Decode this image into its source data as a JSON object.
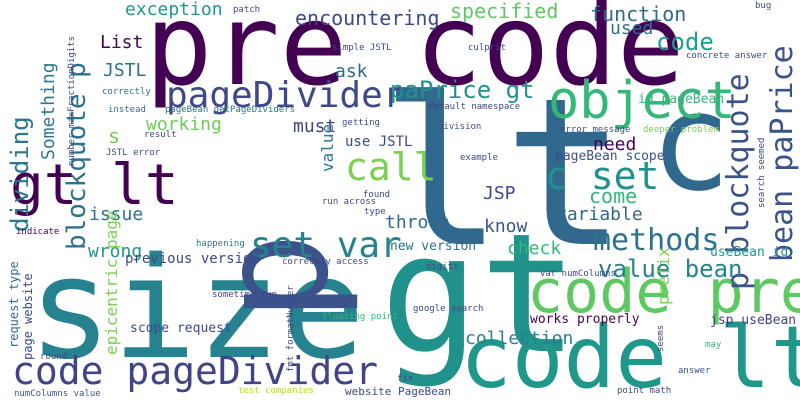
{
  "words": [
    {
      "text": "pre code",
      "color": "#440154"
    },
    {
      "text": "lt",
      "color": "#31688e"
    },
    {
      "text": "c",
      "color": "#31688e"
    },
    {
      "text": "gt",
      "color": "#21918c"
    },
    {
      "text": "size",
      "color": "#26828e"
    },
    {
      "text": "p",
      "color": "#3b528b"
    },
    {
      "text": "code pre",
      "color": "#5ec962"
    },
    {
      "text": "code lt",
      "color": "#1f988b"
    },
    {
      "text": "object",
      "color": "#35b779"
    },
    {
      "text": "gt lt",
      "color": "#440154"
    },
    {
      "text": "pageDivider",
      "color": "#3e4989"
    },
    {
      "text": "code pageDivider",
      "color": "#414487"
    },
    {
      "text": "p blockquote",
      "color": "#3b528b"
    },
    {
      "text": "blockquote p",
      "color": "#2c728e"
    },
    {
      "text": "c set",
      "color": "#21918c"
    },
    {
      "text": "call",
      "color": "#7ad151"
    },
    {
      "text": "set var",
      "color": "#26828e"
    },
    {
      "text": "methods",
      "color": "#2c728e"
    },
    {
      "text": "value bean",
      "color": "#26828e"
    },
    {
      "text": "bean paPrice",
      "color": "#3b528b"
    },
    {
      "text": "paPrice gt",
      "color": "#21918c"
    },
    {
      "text": "dividing",
      "color": "#2a788e"
    },
    {
      "text": "encountering",
      "color": "#3e4989"
    },
    {
      "text": "specified",
      "color": "#5ec962"
    },
    {
      "text": "exception",
      "color": "#1f988b"
    },
    {
      "text": "function",
      "color": "#31688e"
    },
    {
      "text": "code",
      "color": "#1f9e89"
    },
    {
      "text": "used",
      "color": "#2c728e"
    },
    {
      "text": "List",
      "color": "#440154"
    },
    {
      "text": "JSTL",
      "color": "#2c728e"
    },
    {
      "text": "ask",
      "color": "#31688e"
    },
    {
      "text": "working",
      "color": "#6ece58"
    },
    {
      "text": "must",
      "color": "#414487"
    },
    {
      "text": "value",
      "color": "#2a788e"
    },
    {
      "text": "use JSTL",
      "color": "#3e4989"
    },
    {
      "text": "need",
      "color": "#440154"
    },
    {
      "text": "pageBean scope",
      "color": "#3b528b"
    },
    {
      "text": "come",
      "color": "#35b779"
    },
    {
      "text": "JSP",
      "color": "#3e4989"
    },
    {
      "text": "issue",
      "color": "#2c728e"
    },
    {
      "text": "variable",
      "color": "#31688e"
    },
    {
      "text": "thrown",
      "color": "#31688e"
    },
    {
      "text": "know",
      "color": "#3b528b"
    },
    {
      "text": "wrong",
      "color": "#1f988b"
    },
    {
      "text": "check",
      "color": "#35b779"
    },
    {
      "text": "previous version",
      "color": "#3e4989"
    },
    {
      "text": "new version",
      "color": "#2c728e"
    },
    {
      "text": "Something",
      "color": "#2a788e"
    },
    {
      "text": "epicentric page",
      "color": "#7ad151"
    },
    {
      "text": "prefix",
      "color": "#7ad151"
    },
    {
      "text": "collection",
      "color": "#26828e"
    },
    {
      "text": "works properly",
      "color": "#440154"
    },
    {
      "text": "jsp useBean",
      "color": "#414487"
    },
    {
      "text": "scope request",
      "color": "#3e4989"
    },
    {
      "text": "useBean id",
      "color": "#1f988b"
    },
    {
      "text": "id pageBean",
      "color": "#35b779"
    },
    {
      "text": "s",
      "color": "#6ece58"
    },
    {
      "text": "request type",
      "color": "#31688e"
    },
    {
      "text": "page website",
      "color": "#3e4989"
    },
    {
      "text": "website PageBean",
      "color": "#3e4989"
    },
    {
      "text": "numColumns value",
      "color": "#3b528b"
    },
    {
      "text": "test companies",
      "color": "#b5de2b"
    },
    {
      "text": "floating point",
      "color": "#35b779"
    },
    {
      "text": "google search",
      "color": "#3e4989"
    },
    {
      "text": "var numColumns",
      "color": "#3e4989"
    },
    {
      "text": "correctly access",
      "color": "#3e4989"
    },
    {
      "text": "sometime run",
      "color": "#414487"
    },
    {
      "text": "happening",
      "color": "#2a788e"
    },
    {
      "text": "indicate",
      "color": "#440154"
    },
    {
      "text": "round",
      "color": "#3e4989"
    },
    {
      "text": "fmt formatNumber",
      "color": "#3e4989"
    },
    {
      "text": "fix",
      "color": "#414487"
    },
    {
      "text": "point math",
      "color": "#3e4989"
    },
    {
      "text": "answer",
      "color": "#3b528b"
    },
    {
      "text": "may",
      "color": "#35b779"
    },
    {
      "text": "seems",
      "color": "#3e4989"
    },
    {
      "text": "digits",
      "color": "#3e4989"
    },
    {
      "text": "type",
      "color": "#3e4989"
    },
    {
      "text": "found",
      "color": "#3e4989"
    },
    {
      "text": "run across",
      "color": "#3e4989"
    },
    {
      "text": "example",
      "color": "#3e4989"
    },
    {
      "text": "error message",
      "color": "#3e4989"
    },
    {
      "text": "deeper problem",
      "color": "#7ad151"
    },
    {
      "text": "division",
      "color": "#3e4989"
    },
    {
      "text": "getting",
      "color": "#3e4989"
    },
    {
      "text": "default namespace",
      "color": "#3e4989"
    },
    {
      "text": "pageBean getPageDividers",
      "color": "#2c728e"
    },
    {
      "text": "instead",
      "color": "#2c728e"
    },
    {
      "text": "correctly",
      "color": "#2c728e"
    },
    {
      "text": "result",
      "color": "#3e4989"
    },
    {
      "text": "JSTL error",
      "color": "#3e4989"
    },
    {
      "text": "number maxFractionDigits",
      "color": "#3e4989"
    },
    {
      "text": "simple JSTL",
      "color": "#3e4989"
    },
    {
      "text": "patch",
      "color": "#3e4989"
    },
    {
      "text": "culprit",
      "color": "#3e4989"
    },
    {
      "text": "concrete answer",
      "color": "#3e4989"
    },
    {
      "text": "bug",
      "color": "#3e4989"
    },
    {
      "text": "search seemed",
      "color": "#3e4989"
    }
  ]
}
